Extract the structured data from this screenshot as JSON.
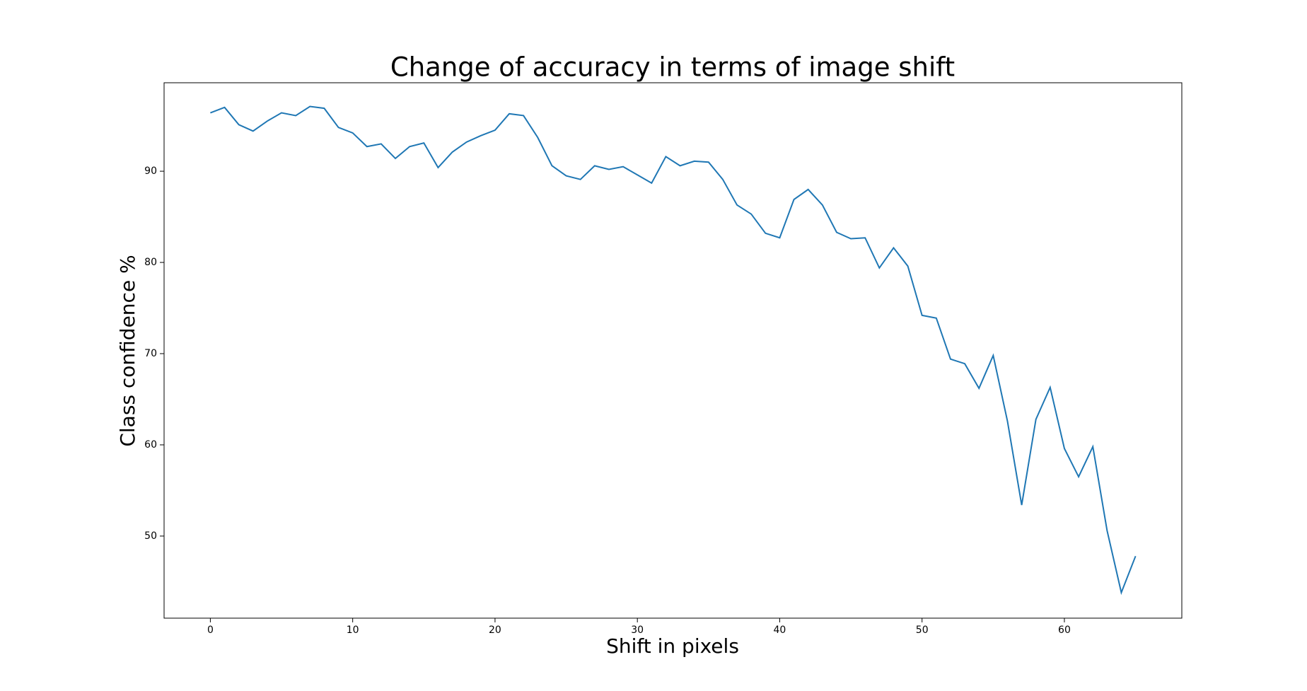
{
  "chart_data": {
    "type": "line",
    "title": "Change of accuracy in terms of image shift",
    "x_label": "Shift in pixels",
    "y_label": "Class confidence %",
    "x": [
      0,
      1,
      2,
      3,
      4,
      5,
      6,
      7,
      8,
      9,
      10,
      11,
      12,
      13,
      14,
      15,
      16,
      17,
      18,
      19,
      20,
      21,
      22,
      23,
      24,
      25,
      26,
      27,
      28,
      29,
      30,
      31,
      32,
      33,
      34,
      35,
      36,
      37,
      38,
      39,
      40,
      41,
      42,
      43,
      44,
      45,
      46,
      47,
      48,
      49,
      50,
      51,
      52,
      53,
      54,
      55,
      56,
      57,
      58,
      59,
      60,
      61,
      62,
      63,
      64,
      65
    ],
    "series": [
      {
        "color": "#1f77b4",
        "values": [
          96.4,
          97.0,
          95.1,
          94.4,
          95.5,
          96.4,
          96.1,
          97.1,
          96.9,
          94.8,
          94.2,
          92.7,
          93.0,
          91.4,
          92.7,
          93.1,
          90.4,
          92.1,
          93.2,
          93.9,
          94.5,
          96.3,
          96.1,
          93.7,
          90.6,
          89.5,
          89.1,
          90.6,
          90.2,
          90.5,
          89.6,
          88.7,
          91.6,
          90.6,
          91.1,
          91.0,
          89.1,
          86.3,
          85.3,
          83.2,
          82.7,
          86.9,
          88.0,
          86.3,
          83.3,
          82.6,
          82.7,
          79.4,
          81.6,
          79.6,
          74.2,
          73.9,
          69.4,
          68.9,
          66.2,
          69.8,
          62.6,
          53.4,
          62.8,
          66.3,
          59.6,
          56.5,
          59.8,
          50.6,
          43.8,
          47.8
        ]
      }
    ],
    "xlim": [
      -3.25,
      68.25
    ],
    "ylim": [
      41.0,
      99.7
    ],
    "xticks": [
      0,
      10,
      20,
      30,
      40,
      50,
      60
    ],
    "yticks": [
      50,
      60,
      70,
      80,
      90
    ],
    "grid": false
  }
}
